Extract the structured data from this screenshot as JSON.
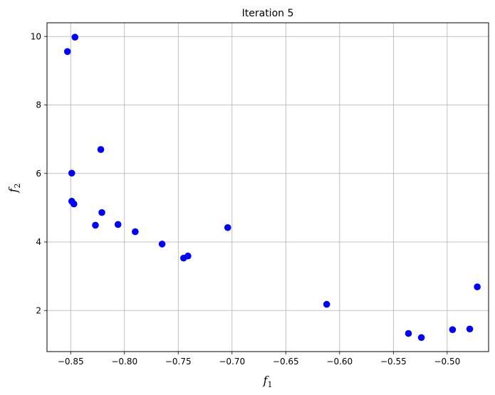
{
  "chart_data": {
    "type": "scatter",
    "title": "Iteration 5",
    "xlabel": {
      "base": "f",
      "sub": "1"
    },
    "ylabel": {
      "base": "f",
      "sub": "2"
    },
    "xlim": [
      -0.872,
      -0.4615
    ],
    "ylim": [
      0.8,
      10.4
    ],
    "xticks": [
      -0.85,
      -0.8,
      -0.75,
      -0.7,
      -0.65,
      -0.6,
      -0.55,
      -0.5
    ],
    "xtick_labels": [
      "−0.85",
      "−0.80",
      "−0.75",
      "−0.70",
      "−0.65",
      "−0.60",
      "−0.55",
      "−0.50"
    ],
    "yticks": [
      2,
      4,
      6,
      8,
      10
    ],
    "ytick_labels": [
      "2",
      "4",
      "6",
      "8",
      "10"
    ],
    "grid": true,
    "marker_color": "#0000ff",
    "points": [
      {
        "x": -0.853,
        "y": 9.56
      },
      {
        "x": -0.846,
        "y": 9.98
      },
      {
        "x": -0.822,
        "y": 6.7
      },
      {
        "x": -0.849,
        "y": 6.01
      },
      {
        "x": -0.849,
        "y": 5.19
      },
      {
        "x": -0.847,
        "y": 5.11
      },
      {
        "x": -0.821,
        "y": 4.86
      },
      {
        "x": -0.827,
        "y": 4.49
      },
      {
        "x": -0.806,
        "y": 4.51
      },
      {
        "x": -0.79,
        "y": 4.3
      },
      {
        "x": -0.765,
        "y": 3.94
      },
      {
        "x": -0.745,
        "y": 3.53
      },
      {
        "x": -0.741,
        "y": 3.59
      },
      {
        "x": -0.704,
        "y": 4.42
      },
      {
        "x": -0.612,
        "y": 2.18
      },
      {
        "x": -0.536,
        "y": 1.33
      },
      {
        "x": -0.524,
        "y": 1.21
      },
      {
        "x": -0.495,
        "y": 1.44
      },
      {
        "x": -0.479,
        "y": 1.46
      },
      {
        "x": -0.472,
        "y": 2.69
      }
    ]
  }
}
